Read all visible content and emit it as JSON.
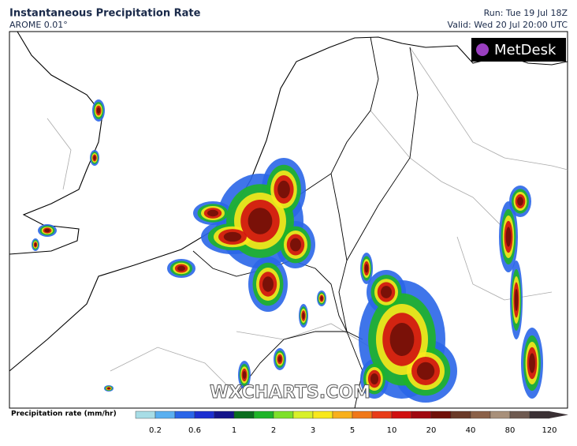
{
  "header": {
    "title": "Instantaneous Precipitation Rate",
    "model": "AROME 0.01°",
    "run": "Run: Tue 19 Jul 18Z",
    "valid": "Valid: Wed 20 Jul 20:00 UTC"
  },
  "logo": "MetDesk",
  "watermark": "WXCHARTS.COM",
  "legend": {
    "title": "Precipitation rate (mm/hr)",
    "ticks": [
      0.2,
      0.6,
      1,
      2,
      3,
      5,
      10,
      20,
      40,
      80,
      120
    ],
    "colors": [
      "#a8dde6",
      "#5bb0f0",
      "#2a66e8",
      "#1c2fd0",
      "#14148a",
      "#0a6e1e",
      "#1eb428",
      "#7ee02a",
      "#d8f02a",
      "#f8e81c",
      "#f8b01c",
      "#f07818",
      "#e83c18",
      "#d01010",
      "#a00810",
      "#701008",
      "#6a3a28",
      "#8a6048",
      "#a8907a",
      "#6e5a50",
      "#3a3034"
    ]
  }
}
